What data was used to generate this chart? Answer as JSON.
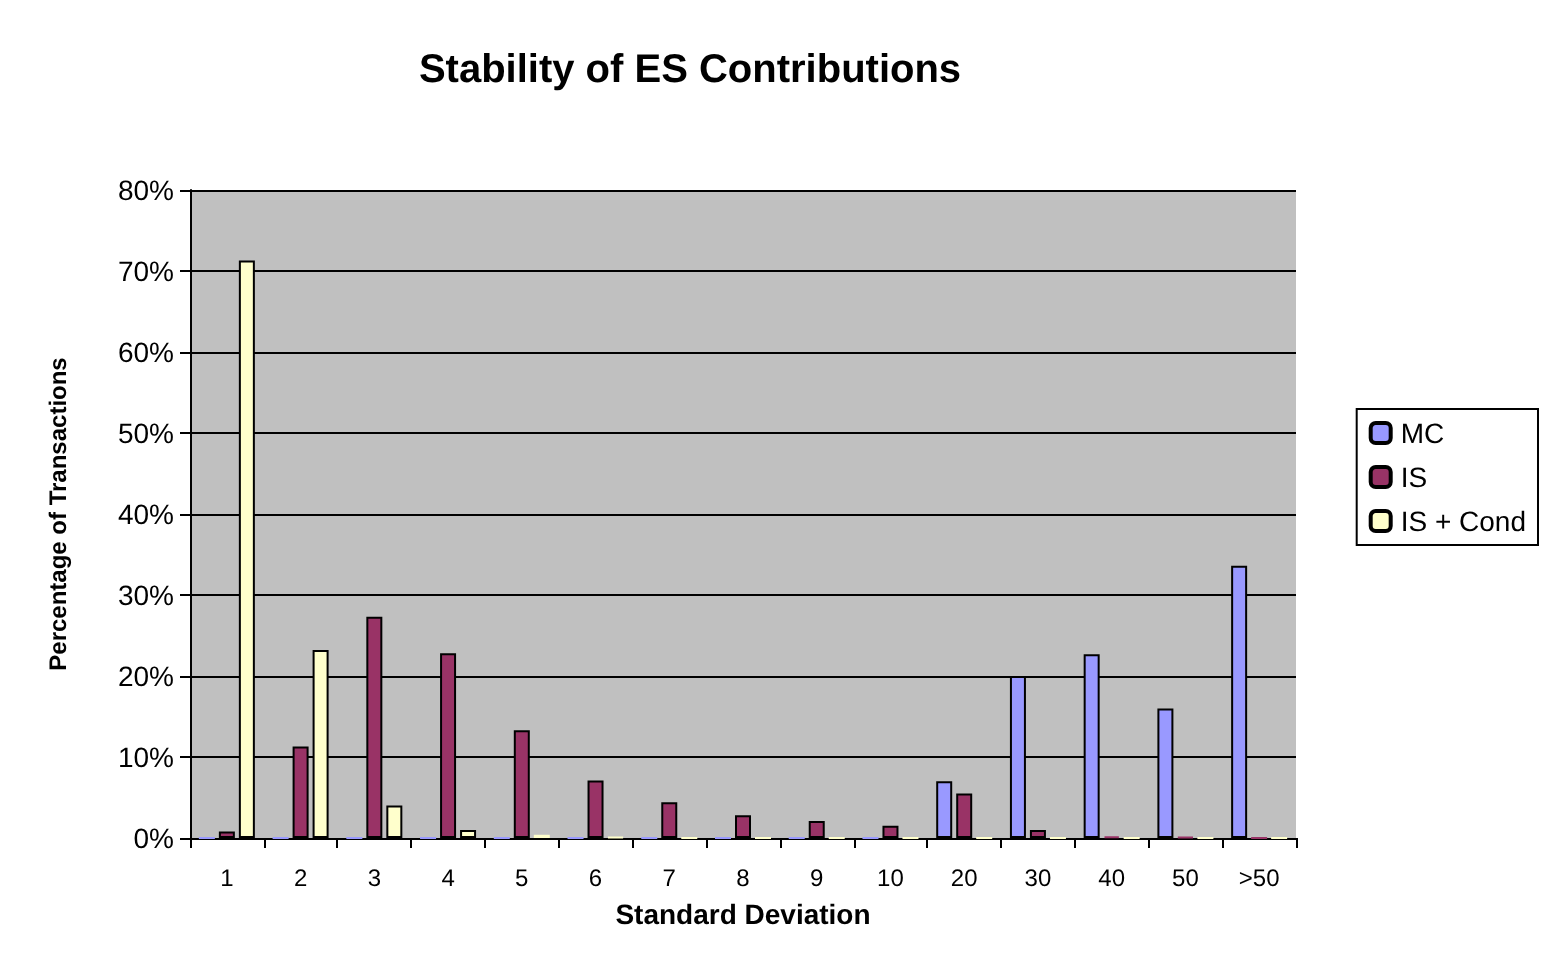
{
  "chart_data": {
    "type": "bar",
    "title": "Stability of ES Contributions",
    "xlabel": "Standard Deviation",
    "ylabel": "Percentage of Transactions",
    "categories": [
      "1",
      "2",
      "3",
      "4",
      "5",
      "6",
      "7",
      "8",
      "9",
      "10",
      "20",
      "30",
      "40",
      "50",
      ">50"
    ],
    "series": [
      {
        "name": "MC",
        "color": "#9999ff",
        "values": [
          0,
          0,
          0,
          0,
          0,
          0,
          0,
          0,
          0,
          0,
          7,
          20,
          22.7,
          16,
          33.6
        ]
      },
      {
        "name": "IS",
        "color": "#993366",
        "values": [
          0.8,
          11.3,
          27.3,
          22.8,
          13.3,
          7.1,
          4.4,
          2.8,
          2.1,
          1.5,
          5.5,
          1,
          0.2,
          0.1,
          0
        ]
      },
      {
        "name": "IS + Cond",
        "color": "#ffffcc",
        "values": [
          71.3,
          23.2,
          4,
          1,
          0.4,
          0.1,
          0,
          0,
          0,
          0,
          0,
          0,
          0,
          0,
          0
        ]
      }
    ],
    "ylim": [
      0,
      80
    ],
    "yticks": [
      {
        "value": 0,
        "label": "0%"
      },
      {
        "value": 10,
        "label": "10%"
      },
      {
        "value": 20,
        "label": "20%"
      },
      {
        "value": 30,
        "label": "30%"
      },
      {
        "value": 40,
        "label": "40%"
      },
      {
        "value": 50,
        "label": "50%"
      },
      {
        "value": 60,
        "label": "60%"
      },
      {
        "value": 70,
        "label": "70%"
      },
      {
        "value": 80,
        "label": "80%"
      }
    ],
    "grid": "y",
    "legend": "right"
  }
}
